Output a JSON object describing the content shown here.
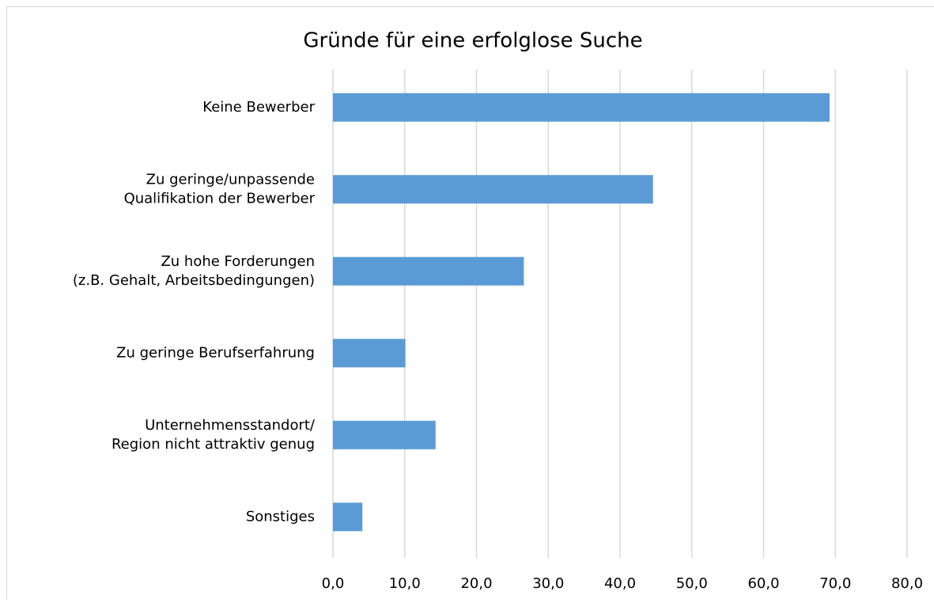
{
  "chart_data": {
    "type": "bar",
    "orientation": "horizontal",
    "title": "Gründe für eine erfolglose Suche",
    "categories": [
      "Keine Bewerber",
      "Zu geringe/unpassende\nQualifikation der Bewerber",
      "Zu hohe Forderungen\n(z.B. Gehalt, Arbeitsbedingungen)",
      "Zu geringe Berufserfahrung",
      "Unternehmensstandort/\nRegion nicht attraktiv genug",
      "Sonstiges"
    ],
    "values": [
      69.2,
      44.6,
      26.6,
      10.1,
      14.3,
      4.1
    ],
    "color": "#5b9bd5",
    "xlim": [
      0,
      80
    ],
    "xticks": [
      {
        "value": 0,
        "label": "0,0"
      },
      {
        "value": 10,
        "label": "10,0"
      },
      {
        "value": 20,
        "label": "20,0"
      },
      {
        "value": 30,
        "label": "30,0"
      },
      {
        "value": 40,
        "label": "40,0"
      },
      {
        "value": 50,
        "label": "50,0"
      },
      {
        "value": 60,
        "label": "60,0"
      },
      {
        "value": 70,
        "label": "70,0"
      },
      {
        "value": 80,
        "label": "80,0"
      }
    ],
    "grid": true
  }
}
